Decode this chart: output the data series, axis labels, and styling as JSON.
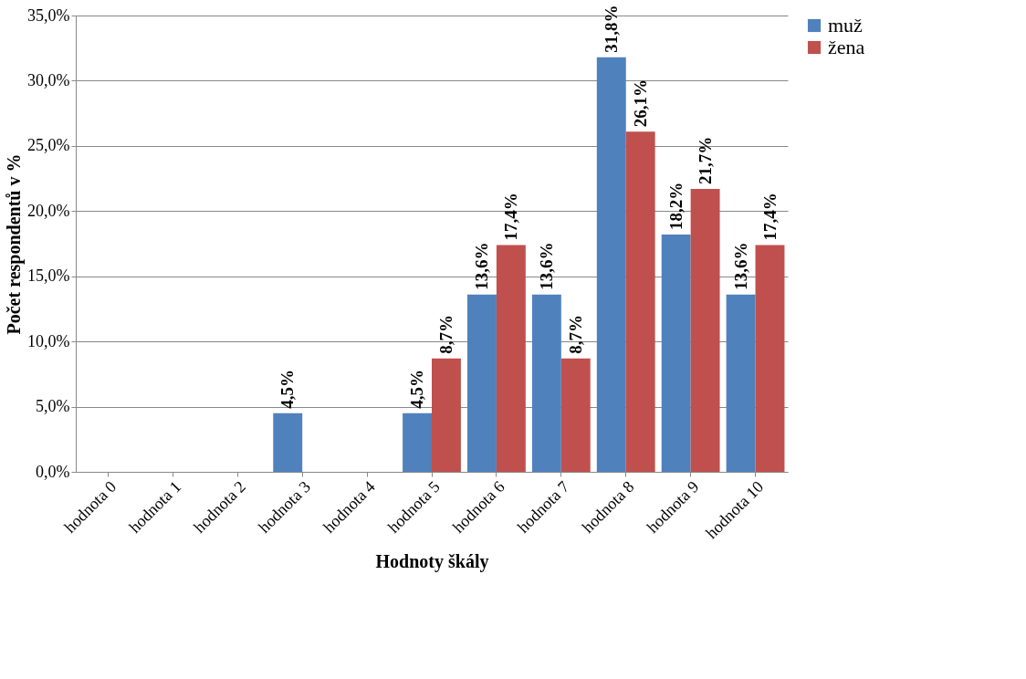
{
  "chart_data": {
    "type": "bar",
    "xlabel": "Hodnoty škály",
    "ylabel": "Počet respondentů v %",
    "categories": [
      "hodnota 0",
      "hodnota 1",
      "hodnota 2",
      "hodnota 3",
      "hodnota 4",
      "hodnota 5",
      "hodnota 6",
      "hodnota 7",
      "hodnota 8",
      "hodnota 9",
      "hodnota 10"
    ],
    "series": [
      {
        "name": "muž",
        "color": "#4f81bd",
        "values": [
          null,
          null,
          null,
          4.5,
          null,
          4.5,
          13.6,
          13.6,
          31.8,
          18.2,
          13.6
        ],
        "value_labels": [
          null,
          null,
          null,
          "4,5%",
          null,
          "4,5%",
          "13,6%",
          "13,6%",
          "31,8%",
          "18,2%",
          "13,6%"
        ]
      },
      {
        "name": "žena",
        "color": "#c0504d",
        "values": [
          null,
          null,
          null,
          null,
          null,
          8.7,
          17.4,
          8.7,
          26.1,
          21.7,
          17.4
        ],
        "value_labels": [
          null,
          null,
          null,
          null,
          null,
          "8,7%",
          "17,4%",
          "8,7%",
          "26,1%",
          "21,7%",
          "17,4%"
        ]
      }
    ],
    "ylim": [
      0,
      35
    ],
    "yticks": [
      {
        "value": 0,
        "label": "0,0%"
      },
      {
        "value": 5,
        "label": "5,0%"
      },
      {
        "value": 10,
        "label": "10,0%"
      },
      {
        "value": 15,
        "label": "15,0%"
      },
      {
        "value": 20,
        "label": "20,0%"
      },
      {
        "value": 25,
        "label": "25,0%"
      },
      {
        "value": 30,
        "label": "30,0%"
      },
      {
        "value": 35,
        "label": "35,0%"
      }
    ],
    "grid": "y",
    "legend": "right"
  }
}
